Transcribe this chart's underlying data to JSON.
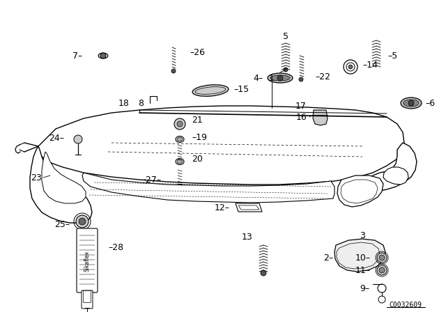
{
  "bg_color": "#ffffff",
  "fig_width": 6.4,
  "fig_height": 4.48,
  "dpi": 100,
  "line_color": "#000000",
  "text_color": "#000000",
  "ref_code": "C0032609",
  "font_size": 9
}
